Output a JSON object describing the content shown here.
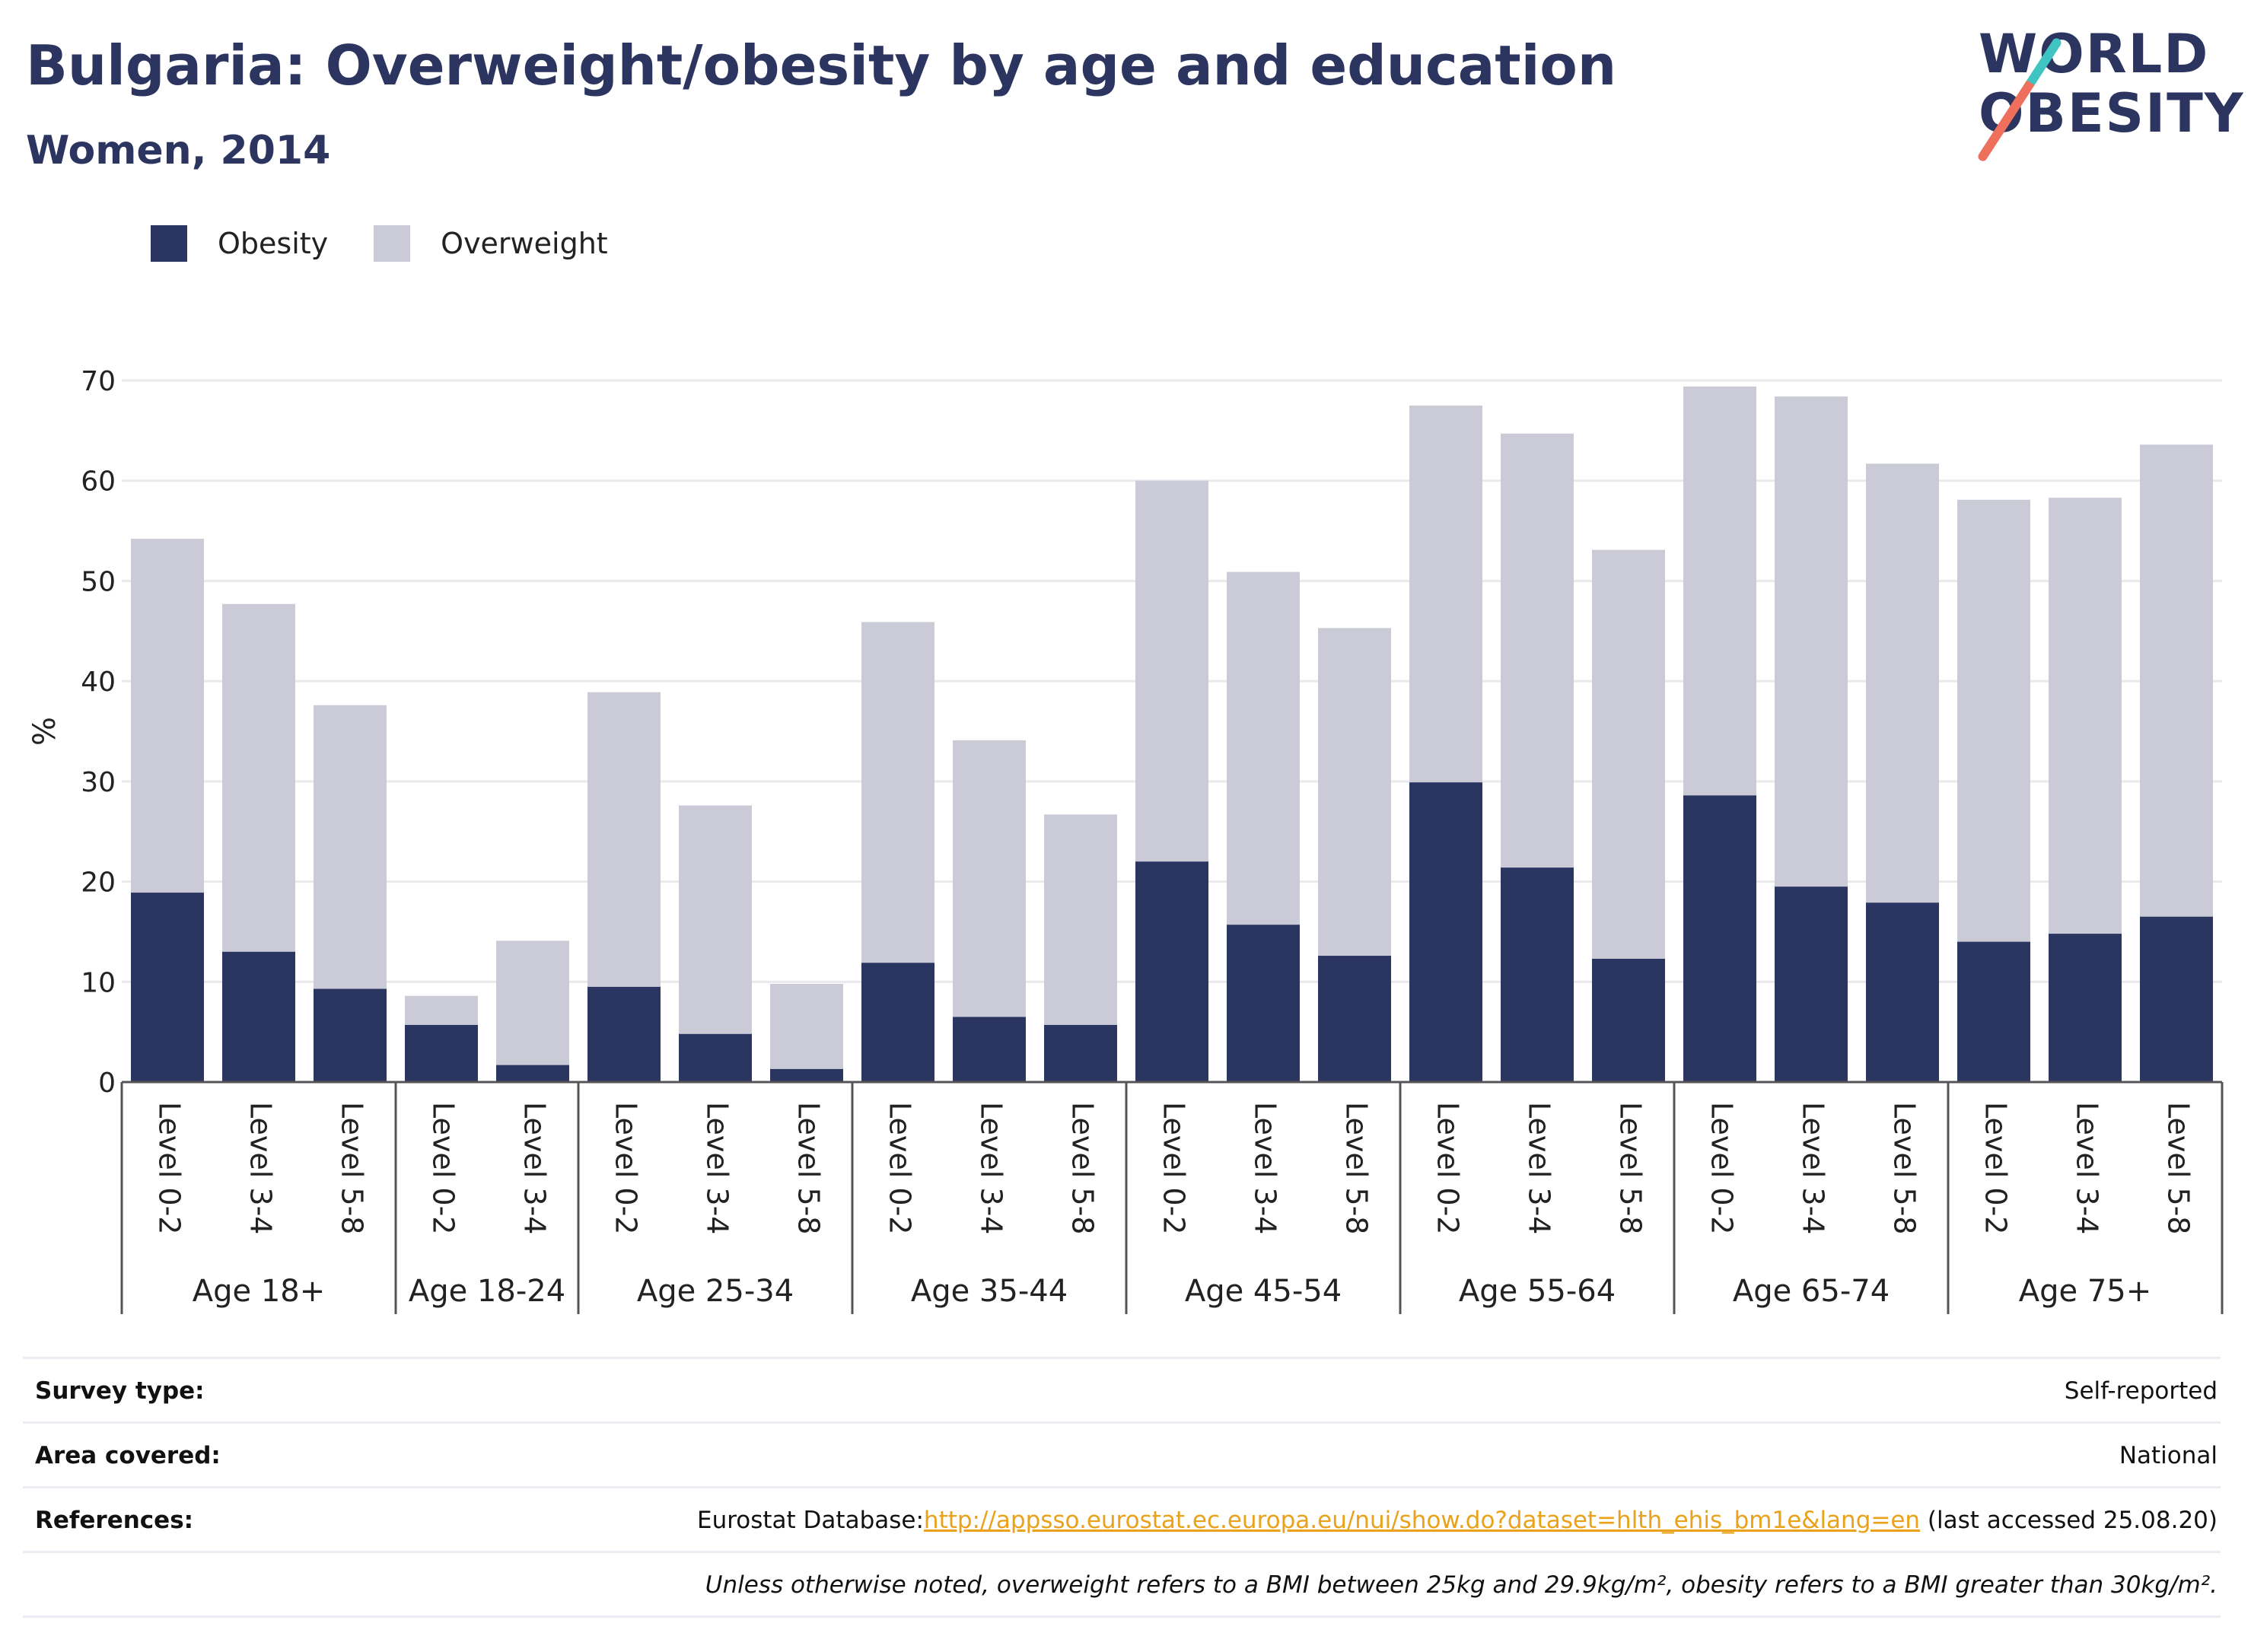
{
  "header": {
    "title": "Bulgaria: Overweight/obesity by age and education",
    "subtitle": "Women, 2014",
    "logo_line1": "WORLD",
    "logo_line2": "OBESITY"
  },
  "colors": {
    "obesity": "#2b3561",
    "overweight": "#cacbd7",
    "grid": "#e9e9ee",
    "axis": "#555555",
    "link": "#e9a21a"
  },
  "chart_data": {
    "type": "bar",
    "stacked": true,
    "ylabel": "%",
    "ylim": [
      0,
      70
    ],
    "yticks": [
      0,
      10,
      20,
      30,
      40,
      50,
      60,
      70
    ],
    "grid": true,
    "legend_position": "top-left",
    "groups": [
      {
        "label": "Age 18+",
        "categories": [
          "Level 0-2",
          "Level 3-4",
          "Level 5-8"
        ]
      },
      {
        "label": "Age 18-24",
        "categories": [
          "Level 0-2",
          "Level 3-4"
        ]
      },
      {
        "label": "Age 25-34",
        "categories": [
          "Level 0-2",
          "Level 3-4",
          "Level 5-8"
        ]
      },
      {
        "label": "Age 35-44",
        "categories": [
          "Level 0-2",
          "Level 3-4",
          "Level 5-8"
        ]
      },
      {
        "label": "Age 45-54",
        "categories": [
          "Level 0-2",
          "Level 3-4",
          "Level 5-8"
        ]
      },
      {
        "label": "Age 55-64",
        "categories": [
          "Level 0-2",
          "Level 3-4",
          "Level 5-8"
        ]
      },
      {
        "label": "Age 65-74",
        "categories": [
          "Level 0-2",
          "Level 3-4",
          "Level 5-8"
        ]
      },
      {
        "label": "Age 75+",
        "categories": [
          "Level 0-2",
          "Level 3-4",
          "Level 5-8"
        ]
      }
    ],
    "series": [
      {
        "name": "Obesity",
        "values": [
          18.9,
          13.0,
          9.3,
          5.7,
          1.7,
          9.5,
          4.8,
          1.3,
          11.9,
          6.5,
          5.7,
          22.0,
          15.7,
          12.6,
          29.9,
          21.4,
          12.3,
          28.6,
          19.5,
          17.9,
          14.0,
          14.8,
          16.5
        ]
      },
      {
        "name": "Overweight",
        "values": [
          35.3,
          34.7,
          28.3,
          2.9,
          12.4,
          29.4,
          22.8,
          8.5,
          34.0,
          27.6,
          21.0,
          38.0,
          35.2,
          32.7,
          37.6,
          43.3,
          40.8,
          40.8,
          48.9,
          43.8,
          44.1,
          43.5,
          47.1
        ]
      }
    ]
  },
  "footer": {
    "survey_type_label": "Survey type:",
    "survey_type_value": "Self-reported",
    "area_label": "Area covered:",
    "area_value": "National",
    "references_label": "References:",
    "references_prefix": "Eurostat Database:",
    "references_link": "http://appsso.eurostat.ec.europa.eu/nui/show.do?dataset=hlth_ehis_bm1e&lang=en",
    "references_suffix": " (last accessed 25.08.20)",
    "note": "Unless otherwise noted, overweight refers to a BMI between 25kg and 29.9kg/m², obesity refers to a BMI greater than 30kg/m²."
  }
}
